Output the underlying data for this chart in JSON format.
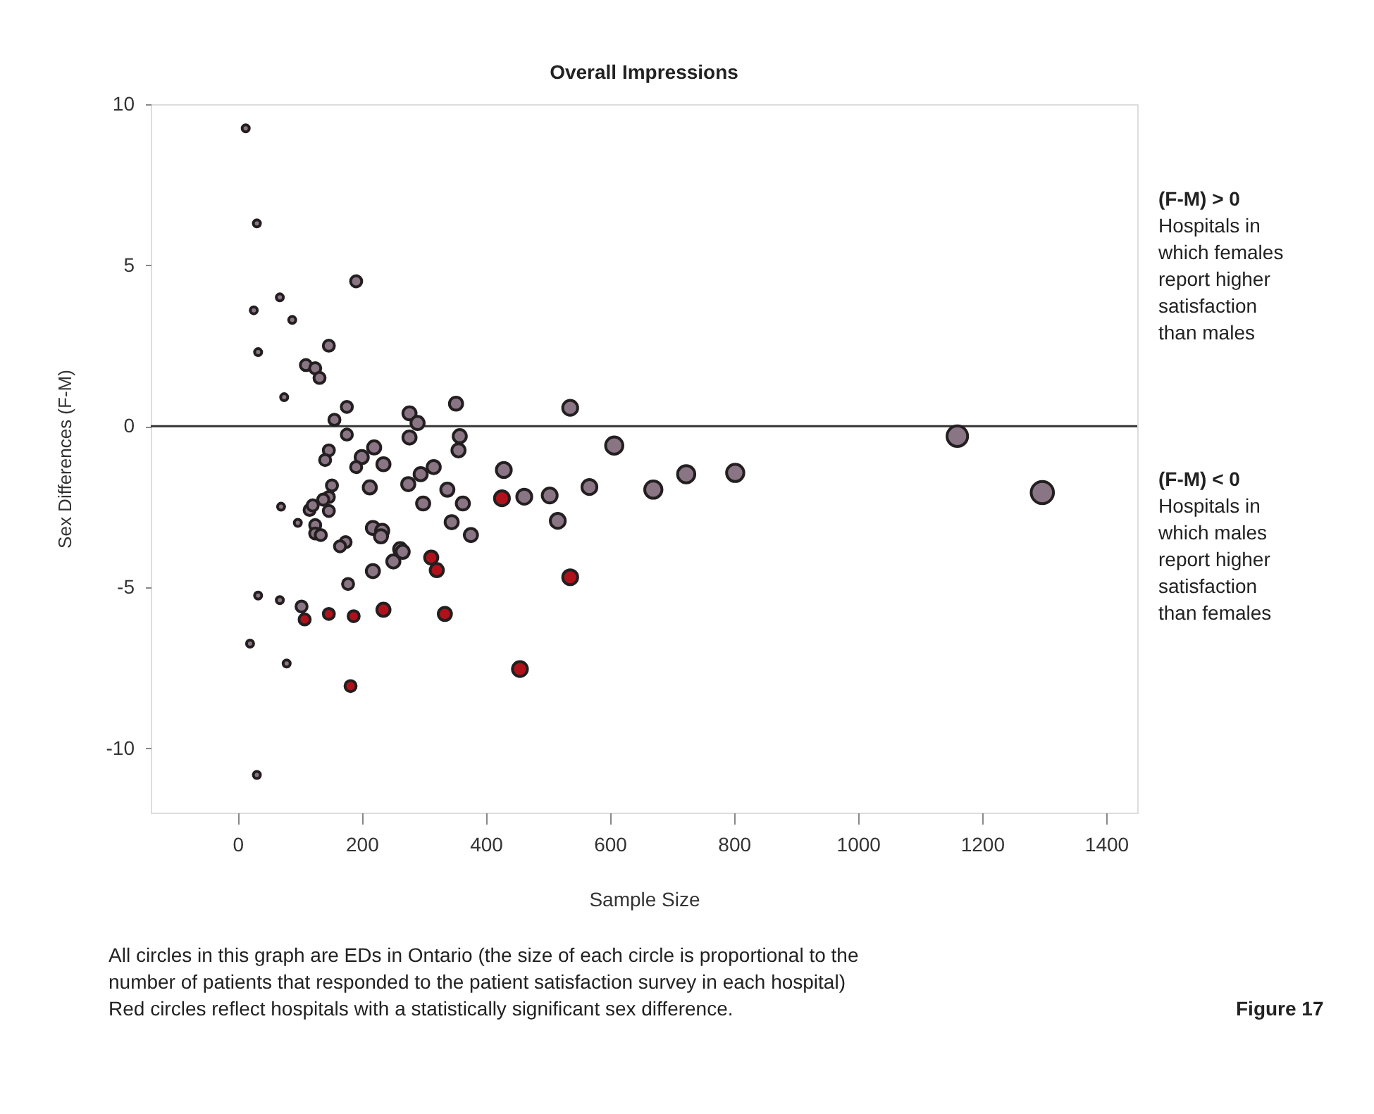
{
  "chart_data": {
    "type": "bubble",
    "title": "Overall Impressions",
    "xlabel": "Sample Size",
    "ylabel": "Sex Differences (F-M)",
    "xlim": [
      -140,
      1450
    ],
    "xticks": [
      0,
      200,
      400,
      600,
      800,
      1000,
      1200,
      1400
    ],
    "ylim": [
      -12,
      10
    ],
    "yticks": [
      -10,
      -5,
      0,
      5,
      10
    ],
    "grid": false,
    "legend": false,
    "ref_lines": [
      {
        "axis": "y",
        "value": 0,
        "color": "#333333"
      }
    ],
    "series": [
      {
        "color": "#8a7585",
        "x": [
          13,
          31,
          191,
          68,
          26,
          88,
          147,
          33,
          110,
          125,
          132,
          75,
          176,
          156,
          277,
          290,
          176,
          277,
          147,
          141,
          220,
          200,
          191,
          235,
          295,
          275,
          213,
          152,
          147,
          138,
          70,
          299,
          116,
          121,
          147,
          97,
          125,
          125,
          134,
          218,
          233,
          231,
          174,
          165,
          262,
          266,
          251,
          218,
          178,
          33,
          68,
          103,
          20,
          79,
          31,
          352,
          536,
          358,
          356,
          607,
          316,
          429,
          338,
          363,
          462,
          503,
          567,
          670,
          723,
          802,
          516,
          345,
          376,
          1160,
          1297
        ],
        "values": [
          9.25,
          6.3,
          4.5,
          4.0,
          3.6,
          3.3,
          2.5,
          2.3,
          1.9,
          1.8,
          1.5,
          0.9,
          0.6,
          0.2,
          0.4,
          0.1,
          -0.26,
          -0.35,
          -0.75,
          -1.05,
          -0.66,
          -0.96,
          -1.27,
          -1.18,
          -1.49,
          -1.8,
          -1.9,
          -1.84,
          -2.2,
          -2.28,
          -2.5,
          -2.4,
          -2.6,
          -2.46,
          -2.63,
          -3.0,
          -3.07,
          -3.33,
          -3.38,
          -3.16,
          -3.25,
          -3.42,
          -3.6,
          -3.73,
          -3.82,
          -3.9,
          -4.2,
          -4.5,
          -4.9,
          -5.26,
          -5.4,
          -5.6,
          -6.75,
          -7.37,
          -10.83,
          0.7,
          0.57,
          -0.31,
          -0.75,
          -0.6,
          -1.27,
          -1.36,
          -1.97,
          -2.4,
          -2.19,
          -2.15,
          -1.89,
          -1.97,
          -1.49,
          -1.45,
          -2.94,
          -2.98,
          -3.38,
          -0.31,
          -2.06
        ],
        "sizes": [
          0.1,
          0.1,
          0.25,
          0.1,
          0.1,
          0.1,
          0.25,
          0.1,
          0.25,
          0.25,
          0.25,
          0.1,
          0.25,
          0.25,
          0.35,
          0.35,
          0.25,
          0.35,
          0.25,
          0.25,
          0.35,
          0.35,
          0.25,
          0.35,
          0.35,
          0.35,
          0.35,
          0.25,
          0.25,
          0.25,
          0.1,
          0.35,
          0.25,
          0.25,
          0.25,
          0.1,
          0.25,
          0.25,
          0.25,
          0.35,
          0.35,
          0.35,
          0.25,
          0.25,
          0.35,
          0.35,
          0.35,
          0.35,
          0.25,
          0.1,
          0.1,
          0.25,
          0.1,
          0.1,
          0.1,
          0.35,
          0.45,
          0.35,
          0.35,
          0.6,
          0.35,
          0.45,
          0.35,
          0.35,
          0.45,
          0.45,
          0.45,
          0.6,
          0.6,
          0.6,
          0.45,
          0.35,
          0.35,
          0.85,
          1
        ]
      },
      {
        "color": "#b0121b",
        "x": [
          108,
          147,
          187,
          235,
          182,
          426,
          312,
          321,
          536,
          334,
          455
        ],
        "values": [
          -6.0,
          -5.83,
          -5.9,
          -5.7,
          -8.07,
          -2.24,
          -4.08,
          -4.47,
          -4.69,
          -5.83,
          -7.54
        ],
        "sizes": [
          0.25,
          0.25,
          0.25,
          0.35,
          0.25,
          0.45,
          0.35,
          0.35,
          0.45,
          0.35,
          0.45
        ]
      }
    ],
    "annotations": [
      "(F-M) > 0",
      "Hospitals in which females report higher satisfaction than males",
      "(F-M) < 0",
      "Hospitals in which males report higher satisfaction than females",
      "All circles in this graph are EDs in Ontario (the size of each circle is proportional to the number of patients that responded to the patient satisfaction survey in each hospital)",
      "Red circles reflect hospitals with a statistically significant sex difference.",
      "Figure 17"
    ]
  }
}
